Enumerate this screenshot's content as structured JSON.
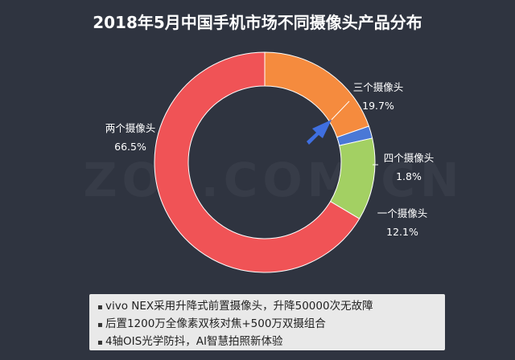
{
  "chart_data": {
    "type": "pie",
    "title": "2018年5月中国手机市场不同摄像头产品分布",
    "categories": [
      "三个摄像头",
      "四个摄像头",
      "一个摄像头",
      "两个摄像头"
    ],
    "values": [
      19.7,
      1.8,
      12.1,
      66.5
    ],
    "value_labels": [
      "19.7%",
      "1.8%",
      "12.1%",
      "66.5%"
    ],
    "colors": [
      "#f58b3e",
      "#4a78d6",
      "#a3d063",
      "#f05356"
    ]
  },
  "watermark": "ZOL.COM.CN",
  "notes": [
    "vivo NEX采用升降式前置摄像头，升降50000次无故障",
    "后置1200万全像素双核对焦+500万双摄组合",
    "4轴OIS光学防抖，AI智慧拍照新体验"
  ]
}
